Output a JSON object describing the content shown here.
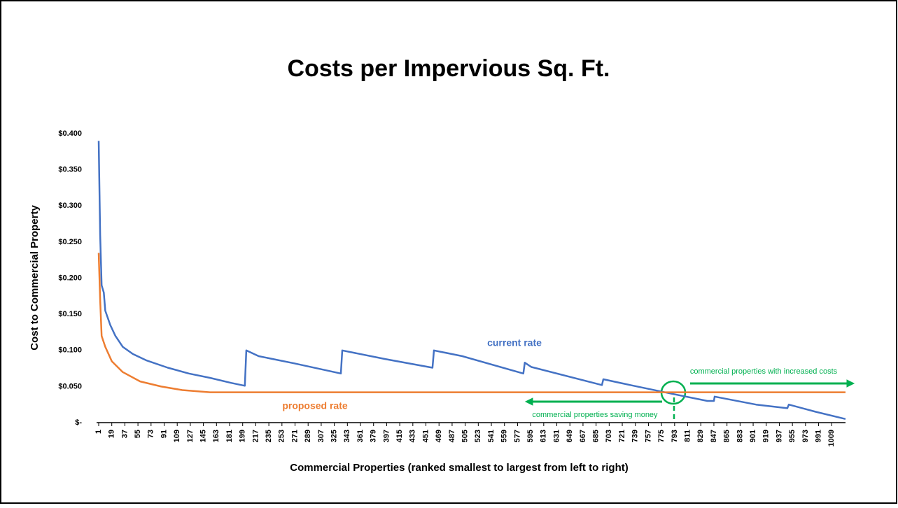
{
  "chart_data": {
    "type": "line",
    "title": "Costs per Impervious Sq. Ft.",
    "x_label": "Commercial Properties (ranked smallest to largest from left to right)",
    "y_label": "Cost to Commercial Property",
    "xlim": [
      1,
      1028
    ],
    "xticks": [
      1,
      19,
      37,
      55,
      73,
      91,
      109,
      127,
      145,
      163,
      181,
      199,
      217,
      235,
      253,
      271,
      289,
      307,
      325,
      343,
      361,
      379,
      397,
      415,
      433,
      451,
      469,
      487,
      505,
      523,
      541,
      559,
      577,
      595,
      613,
      631,
      649,
      667,
      685,
      703,
      721,
      739,
      757,
      775,
      793,
      811,
      829,
      847,
      865,
      883,
      901,
      919,
      937,
      955,
      973,
      991,
      1009
    ],
    "ylim": [
      0,
      0.4
    ],
    "yticks": [
      {
        "value": 0,
        "label": "$-"
      },
      {
        "value": 0.05,
        "label": "$0.050"
      },
      {
        "value": 0.1,
        "label": "$0.100"
      },
      {
        "value": 0.15,
        "label": "$0.150"
      },
      {
        "value": 0.2,
        "label": "$0.200"
      },
      {
        "value": 0.25,
        "label": "$0.250"
      },
      {
        "value": 0.3,
        "label": "$0.300"
      },
      {
        "value": 0.35,
        "label": "$0.350"
      },
      {
        "value": 0.4,
        "label": "$0.400"
      }
    ],
    "series": [
      {
        "name": "current rate",
        "color": "#4472c4",
        "x": [
          1,
          3,
          5,
          8,
          10,
          17,
          24,
          34,
          48,
          67,
          96,
          125,
          154,
          183,
          202,
          204,
          221,
          270,
          334,
          336,
          395,
          460,
          462,
          501,
          585,
          587,
          596,
          693,
          695,
          732,
          789,
          838,
          847,
          848,
          905,
          948,
          950,
          987,
          1028
        ],
        "values": [
          0.39,
          0.26,
          0.19,
          0.18,
          0.155,
          0.135,
          0.12,
          0.105,
          0.095,
          0.086,
          0.076,
          0.068,
          0.062,
          0.055,
          0.051,
          0.1,
          0.092,
          0.082,
          0.068,
          0.1,
          0.088,
          0.076,
          0.1,
          0.092,
          0.068,
          0.083,
          0.077,
          0.052,
          0.06,
          0.052,
          0.04,
          0.03,
          0.03,
          0.036,
          0.025,
          0.02,
          0.025,
          0.015,
          0.005
        ]
      },
      {
        "name": "proposed rate",
        "color": "#ed7d31",
        "x": [
          1,
          3,
          5,
          10,
          19,
          34,
          58,
          87,
          116,
          154,
          1028
        ],
        "values": [
          0.235,
          0.17,
          0.12,
          0.105,
          0.085,
          0.07,
          0.057,
          0.05,
          0.045,
          0.042,
          0.042
        ]
      }
    ],
    "annotations": [
      "commercial properties with increased costs",
      "commercial properties saving money"
    ]
  }
}
